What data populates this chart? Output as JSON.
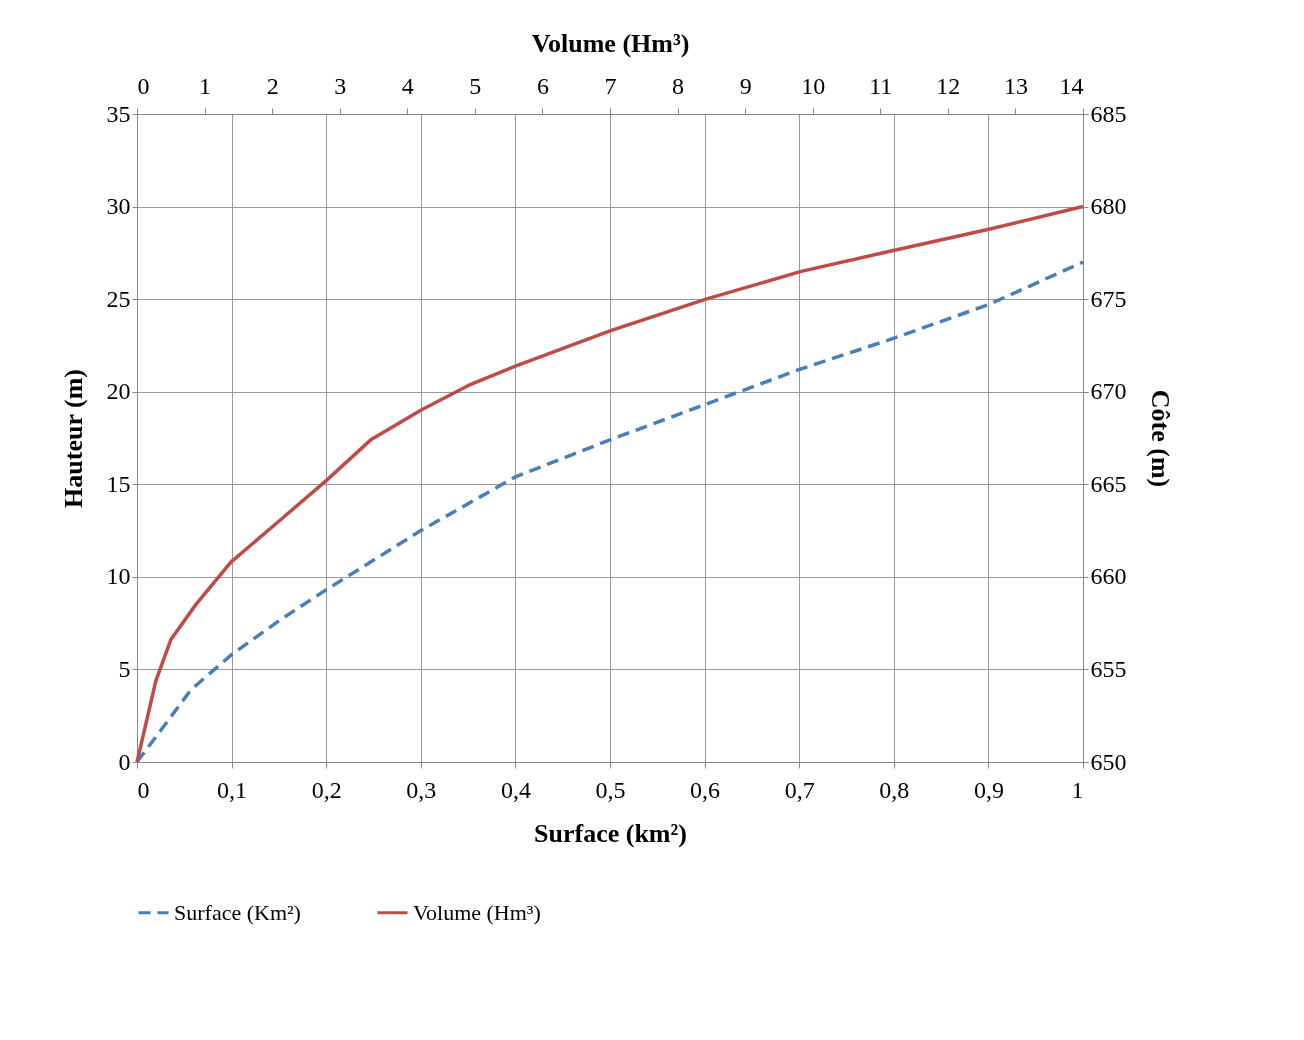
{
  "chart_data": {
    "type": "line",
    "xlabel": "Surface (km²)",
    "x2label": "Volume (Hm³)",
    "ylabel": "Hauteur (m)",
    "y2label": "Côte (m)",
    "xlim": [
      0,
      1
    ],
    "xticks": [
      0,
      {
        "value": 0.1,
        "label": "0,1"
      },
      {
        "value": 0.2,
        "label": "0,2"
      },
      {
        "value": 0.3,
        "label": "0,3"
      },
      {
        "value": 0.4,
        "label": "0,4"
      },
      {
        "value": 0.5,
        "label": "0,5"
      },
      {
        "value": 0.6,
        "label": "0,6"
      },
      {
        "value": 0.7,
        "label": "0,7"
      },
      {
        "value": 0.8,
        "label": "0,8"
      },
      {
        "value": 0.9,
        "label": "0,9"
      },
      1
    ],
    "x2lim": [
      0,
      14
    ],
    "x2ticks": [
      0,
      1,
      2,
      3,
      4,
      5,
      6,
      7,
      8,
      9,
      10,
      11,
      12,
      13,
      14
    ],
    "ylim": [
      0,
      35
    ],
    "yticks": [
      0,
      5,
      10,
      15,
      20,
      25,
      30,
      35
    ],
    "y2lim": [
      650,
      685
    ],
    "y2ticks": [
      650,
      655,
      660,
      665,
      670,
      675,
      680,
      685
    ],
    "grid": true,
    "legend": "bottom",
    "marker": "none",
    "series": [
      {
        "name": "Surface (Km²)",
        "color": "#4a7ebb",
        "line_style": "dashed",
        "x": [
          0,
          0.025,
          0.057,
          0.1,
          0.152,
          0.2,
          0.3,
          0.4,
          0.5,
          0.6,
          0.7,
          0.795,
          0.9,
          1
        ],
        "values": [
          0,
          1.7,
          3.9,
          5.8,
          7.7,
          9.3,
          12.5,
          15.4,
          17.4,
          19.3,
          21.2,
          22.8,
          24.7,
          27
        ]
      },
      {
        "name": "Volume (Hm³)",
        "color": "#be4b48",
        "line_style": "solid",
        "axis": "x2",
        "x": [
          0,
          0.28,
          0.5,
          0.87,
          1.39,
          2.13,
          2.8,
          3.46,
          4.2,
          4.94,
          5.61,
          7.01,
          8.42,
          9.83,
          11.16,
          12.64,
          14
        ],
        "values": [
          0,
          4.4,
          6.6,
          8.5,
          10.8,
          13.1,
          15.2,
          17.4,
          19,
          20.4,
          21.4,
          23.3,
          25,
          26.5,
          27.6,
          28.8,
          30
        ]
      }
    ]
  }
}
